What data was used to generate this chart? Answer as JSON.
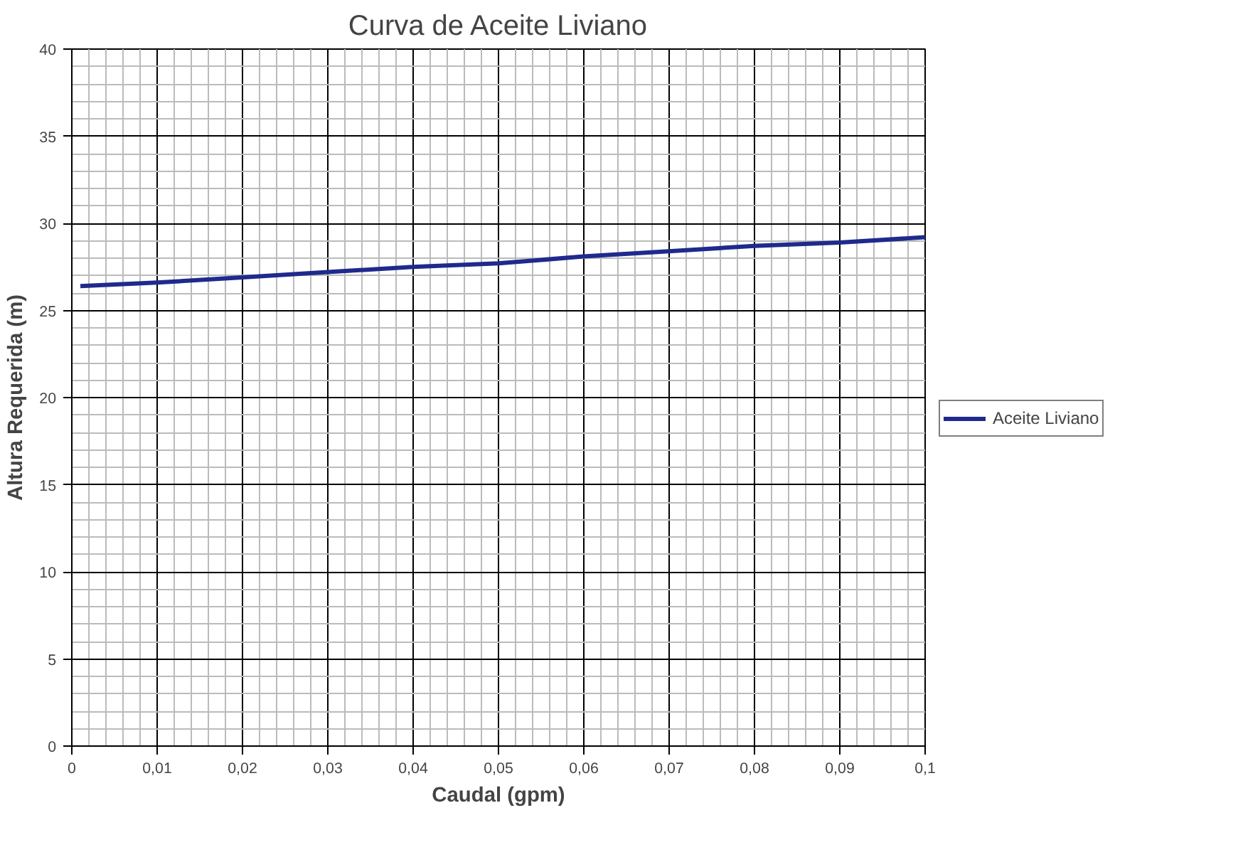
{
  "chart_data": {
    "type": "line",
    "title": "Curva de Aceite Liviano",
    "xlabel": "Caudal (gpm)",
    "ylabel": "Altura Requerida (m)",
    "x": [
      0.001,
      0.01,
      0.02,
      0.03,
      0.04,
      0.05,
      0.06,
      0.07,
      0.08,
      0.09,
      0.1
    ],
    "series": [
      {
        "name": "Aceite Liviano",
        "color": "#1f2a8c",
        "values": [
          26.4,
          26.6,
          26.9,
          27.2,
          27.5,
          27.7,
          28.1,
          28.4,
          28.7,
          28.9,
          29.2
        ]
      }
    ],
    "xlim": [
      0,
      0.1
    ],
    "ylim": [
      0,
      40
    ],
    "xticks": [
      0,
      {
        "value": 0.01,
        "label": "0,01"
      },
      {
        "value": 0.02,
        "label": "0,02"
      },
      {
        "value": 0.03,
        "label": "0,03"
      },
      {
        "value": 0.04,
        "label": "0,04"
      },
      {
        "value": 0.05,
        "label": "0,05"
      },
      {
        "value": 0.06,
        "label": "0,06"
      },
      {
        "value": 0.07,
        "label": "0,07"
      },
      {
        "value": 0.08,
        "label": "0,08"
      },
      {
        "value": 0.09,
        "label": "0,09"
      },
      {
        "value": 0.1,
        "label": "0,1"
      }
    ],
    "yticks": [
      0,
      5,
      10,
      15,
      20,
      25,
      30,
      35,
      40
    ],
    "grid": true,
    "legend": "right",
    "marker": "none",
    "line_style": "solid"
  }
}
